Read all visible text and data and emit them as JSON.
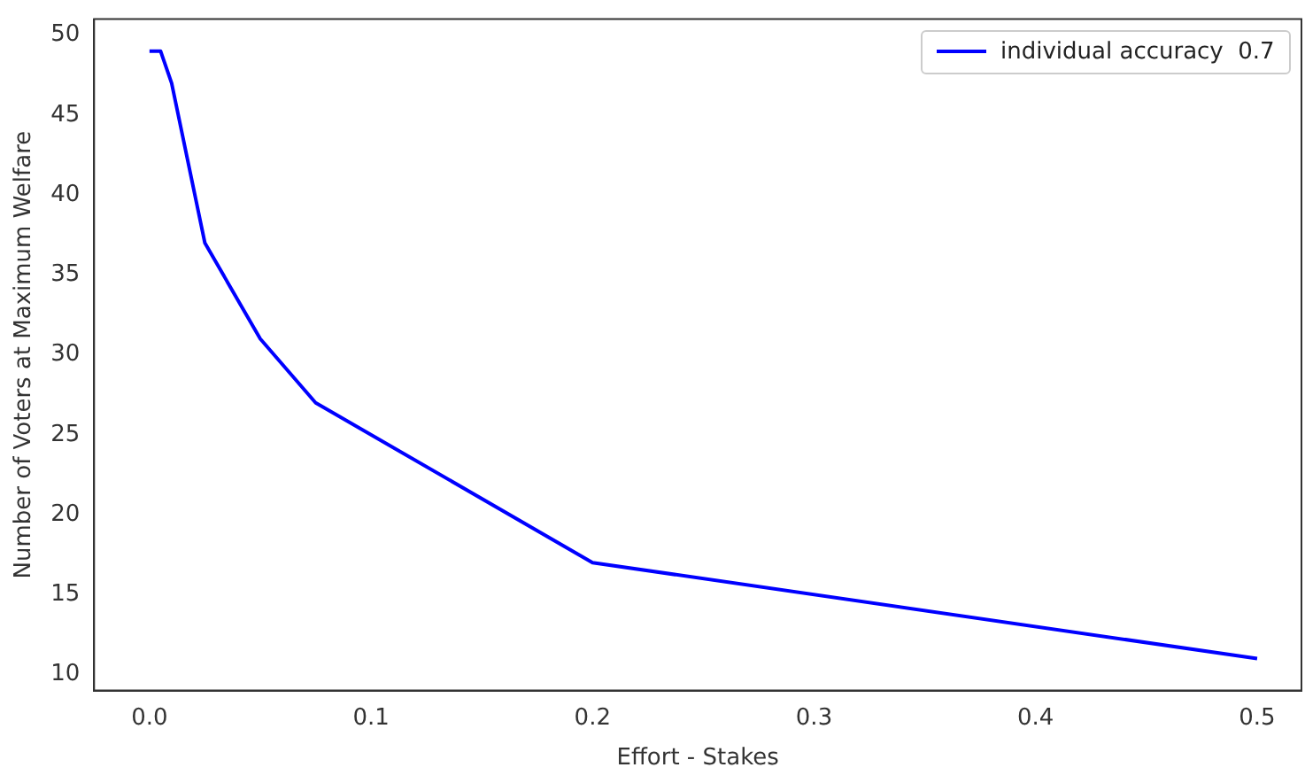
{
  "chart_data": {
    "type": "line",
    "xlabel": "Effort - Stakes",
    "ylabel": "Number of Voters at Maximum Welfare",
    "x": [
      0,
      0.005,
      0.01,
      0.025,
      0.05,
      0.075,
      0.2,
      0.5
    ],
    "series": [
      {
        "name": "individual accuracy  0.7",
        "color": "#0000ff",
        "values": [
          49,
          49,
          47,
          37,
          31,
          27,
          17,
          11
        ]
      }
    ],
    "xlim": [
      -0.025,
      0.52
    ],
    "xticks": [
      {
        "value": 0,
        "label": "0.0"
      },
      0.1,
      0.2,
      0.3,
      0.4,
      0.5
    ],
    "ylim": [
      9,
      51
    ],
    "yticks": [
      10,
      15,
      20,
      25,
      30,
      35,
      40,
      45,
      50
    ],
    "grid": false,
    "legend": "top right",
    "marker": "none",
    "line_style": "solid"
  }
}
